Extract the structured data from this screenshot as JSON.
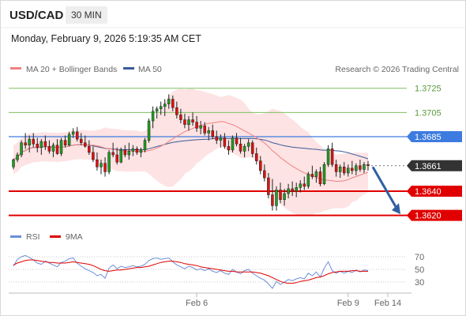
{
  "header": {
    "symbol": "USD/CAD",
    "timeframe": "30 MIN",
    "datetime": "Monday, February 9, 2026 5:19:35 AM CET"
  },
  "legend": {
    "ma20": "MA 20 + Bollinger Bands",
    "ma50": "MA 50",
    "credit": "Research © 2026 Trading Central",
    "rsi": "RSI",
    "rsi_ma": "9MA"
  },
  "colors": {
    "ma20": "#f08080",
    "ma50": "#3a5a9a",
    "bands_fill": "#fde3e3",
    "green_level": "#7fc060",
    "blue_level": "#3d7be0",
    "red_level": "#e00000",
    "price_box": "#333333",
    "candle_up": "#1f9e1f",
    "candle_down": "#e01010",
    "arrow": "#2f5fa3",
    "rsi_line": "#6a8fd8",
    "rsi_ma_line": "#e00000"
  },
  "chart_data": {
    "type": "candlestick",
    "ylim": [
      1.3608,
      1.3732
    ],
    "levels": [
      {
        "value": 1.3725,
        "label": "1.3725",
        "style": "green"
      },
      {
        "value": 1.3705,
        "label": "1.3705",
        "style": "green"
      },
      {
        "value": 1.3685,
        "label": "1.3685",
        "style": "blue"
      },
      {
        "value": 1.3661,
        "label": "1.3661",
        "style": "current"
      },
      {
        "value": 1.364,
        "label": "1.3640",
        "style": "red"
      },
      {
        "value": 1.362,
        "label": "1.3620",
        "style": "red"
      }
    ],
    "x_ticks": [
      "Feb 6",
      "Feb 9",
      "Feb 14"
    ],
    "candles": [
      [
        1.366,
        1.3667,
        1.3658,
        1.3666
      ],
      [
        1.3666,
        1.3672,
        1.3664,
        1.367
      ],
      [
        1.367,
        1.3682,
        1.3668,
        1.368
      ],
      [
        1.368,
        1.3688,
        1.3675,
        1.3678
      ],
      [
        1.3678,
        1.3686,
        1.3672,
        1.3683
      ],
      [
        1.3683,
        1.3688,
        1.3676,
        1.3679
      ],
      [
        1.3679,
        1.3684,
        1.3672,
        1.3676
      ],
      [
        1.3676,
        1.3683,
        1.367,
        1.3681
      ],
      [
        1.3681,
        1.3686,
        1.3674,
        1.3677
      ],
      [
        1.3677,
        1.3682,
        1.3671,
        1.3673
      ],
      [
        1.3673,
        1.368,
        1.3668,
        1.3678
      ],
      [
        1.3678,
        1.3683,
        1.367,
        1.3671
      ],
      [
        1.3671,
        1.3684,
        1.3669,
        1.3682
      ],
      [
        1.3682,
        1.3686,
        1.3676,
        1.3678
      ],
      [
        1.3678,
        1.3689,
        1.3677,
        1.3687
      ],
      [
        1.3687,
        1.3692,
        1.3684,
        1.3689
      ],
      [
        1.3689,
        1.3693,
        1.3681,
        1.3683
      ],
      [
        1.3683,
        1.3688,
        1.3678,
        1.368
      ],
      [
        1.368,
        1.3686,
        1.3676,
        1.3677
      ],
      [
        1.3677,
        1.3682,
        1.367,
        1.3672
      ],
      [
        1.3672,
        1.3677,
        1.3664,
        1.3666
      ],
      [
        1.3666,
        1.3672,
        1.3657,
        1.366
      ],
      [
        1.366,
        1.3666,
        1.3654,
        1.3663
      ],
      [
        1.3663,
        1.3668,
        1.3652,
        1.3656
      ],
      [
        1.3656,
        1.3674,
        1.3654,
        1.3672
      ],
      [
        1.3672,
        1.368,
        1.3668,
        1.367
      ],
      [
        1.367,
        1.3676,
        1.3662,
        1.3664
      ],
      [
        1.3664,
        1.3676,
        1.3663,
        1.3674
      ],
      [
        1.3674,
        1.3678,
        1.3668,
        1.367
      ],
      [
        1.367,
        1.368,
        1.3666,
        1.3673
      ],
      [
        1.3673,
        1.3678,
        1.3669,
        1.3675
      ],
      [
        1.3675,
        1.3677,
        1.367,
        1.3672
      ],
      [
        1.3672,
        1.3676,
        1.3668,
        1.3674
      ],
      [
        1.3674,
        1.3684,
        1.3672,
        1.3682
      ],
      [
        1.3682,
        1.37,
        1.368,
        1.3698
      ],
      [
        1.3698,
        1.371,
        1.3692,
        1.3706
      ],
      [
        1.3706,
        1.371,
        1.37,
        1.3708
      ],
      [
        1.3708,
        1.3714,
        1.3703,
        1.371
      ],
      [
        1.371,
        1.3716,
        1.3702,
        1.3712
      ],
      [
        1.3712,
        1.372,
        1.3708,
        1.3716
      ],
      [
        1.3716,
        1.3719,
        1.3706,
        1.3709
      ],
      [
        1.3709,
        1.3714,
        1.37,
        1.3703
      ],
      [
        1.3703,
        1.3708,
        1.3696,
        1.3699
      ],
      [
        1.3699,
        1.3704,
        1.3692,
        1.3695
      ],
      [
        1.3695,
        1.3702,
        1.369,
        1.3699
      ],
      [
        1.3699,
        1.3705,
        1.3694,
        1.3697
      ],
      [
        1.3697,
        1.3702,
        1.3689,
        1.3692
      ],
      [
        1.3692,
        1.3698,
        1.3687,
        1.3694
      ],
      [
        1.3694,
        1.3697,
        1.3686,
        1.3688
      ],
      [
        1.3688,
        1.3693,
        1.3682,
        1.369
      ],
      [
        1.369,
        1.3695,
        1.3683,
        1.3685
      ],
      [
        1.3685,
        1.369,
        1.3679,
        1.3682
      ],
      [
        1.3682,
        1.3687,
        1.3676,
        1.3684
      ],
      [
        1.3684,
        1.3688,
        1.3675,
        1.3677
      ],
      [
        1.3677,
        1.3682,
        1.367,
        1.3674
      ],
      [
        1.3674,
        1.3686,
        1.3672,
        1.3684
      ],
      [
        1.3684,
        1.3688,
        1.3677,
        1.3679
      ],
      [
        1.3679,
        1.3684,
        1.3671,
        1.3673
      ],
      [
        1.3673,
        1.3679,
        1.3668,
        1.3677
      ],
      [
        1.3677,
        1.3683,
        1.3673,
        1.368
      ],
      [
        1.368,
        1.3682,
        1.3668,
        1.3671
      ],
      [
        1.3671,
        1.3676,
        1.3662,
        1.3665
      ],
      [
        1.3665,
        1.3669,
        1.3654,
        1.3657
      ],
      [
        1.3657,
        1.3662,
        1.3648,
        1.3651
      ],
      [
        1.3651,
        1.3655,
        1.3634,
        1.3637
      ],
      [
        1.3637,
        1.365,
        1.3624,
        1.3628
      ],
      [
        1.3628,
        1.3644,
        1.3624,
        1.3641
      ],
      [
        1.3641,
        1.3647,
        1.363,
        1.3633
      ],
      [
        1.3633,
        1.3642,
        1.3628,
        1.3638
      ],
      [
        1.3638,
        1.3646,
        1.3634,
        1.3642
      ],
      [
        1.3642,
        1.3648,
        1.3636,
        1.364
      ],
      [
        1.364,
        1.3647,
        1.3635,
        1.3643
      ],
      [
        1.3643,
        1.3649,
        1.3639,
        1.3646
      ],
      [
        1.3646,
        1.3652,
        1.3641,
        1.3644
      ],
      [
        1.3644,
        1.3656,
        1.3642,
        1.3654
      ],
      [
        1.3654,
        1.3661,
        1.365,
        1.3652
      ],
      [
        1.3652,
        1.3658,
        1.3647,
        1.3656
      ],
      [
        1.3656,
        1.366,
        1.3644,
        1.3646
      ],
      [
        1.3646,
        1.3664,
        1.3645,
        1.3662
      ],
      [
        1.3662,
        1.3678,
        1.366,
        1.3675
      ],
      [
        1.3675,
        1.368,
        1.366,
        1.3662
      ],
      [
        1.3662,
        1.3666,
        1.3652,
        1.3656
      ],
      [
        1.3656,
        1.3662,
        1.3651,
        1.366
      ],
      [
        1.366,
        1.3664,
        1.3653,
        1.3655
      ],
      [
        1.3655,
        1.3662,
        1.3652,
        1.3659
      ],
      [
        1.3659,
        1.3665,
        1.3654,
        1.3657
      ],
      [
        1.3657,
        1.3663,
        1.3653,
        1.3661
      ],
      [
        1.3661,
        1.3666,
        1.3656,
        1.3658
      ],
      [
        1.3658,
        1.3664,
        1.3655,
        1.3662
      ],
      [
        1.3662,
        1.3665,
        1.3657,
        1.3661
      ]
    ],
    "rsi": [
      55,
      66,
      70,
      72,
      69,
      65,
      60,
      58,
      63,
      60,
      57,
      54,
      61,
      63,
      67,
      68,
      60,
      55,
      51,
      48,
      45,
      40,
      42,
      36,
      52,
      57,
      51,
      55,
      53,
      54,
      56,
      54,
      55,
      58,
      64,
      67,
      68,
      66,
      67,
      68,
      62,
      57,
      54,
      51,
      55,
      53,
      49,
      51,
      48,
      51,
      47,
      45,
      48,
      44,
      42,
      50,
      46,
      43,
      48,
      50,
      44,
      40,
      36,
      33,
      27,
      20,
      31,
      26,
      30,
      34,
      32,
      35,
      37,
      35,
      44,
      40,
      46,
      38,
      52,
      62,
      48,
      44,
      47,
      44,
      47,
      45,
      49,
      46,
      49,
      48
    ],
    "rsi_ma": [
      57,
      60,
      62,
      64,
      65,
      65,
      64,
      63,
      62,
      61,
      61,
      60,
      60,
      60,
      61,
      62,
      61,
      60,
      59,
      58,
      56,
      53,
      50,
      48,
      47,
      48,
      49,
      49,
      50,
      51,
      52,
      53,
      53,
      54,
      55,
      57,
      59,
      61,
      62,
      63,
      63,
      62,
      61,
      59,
      58,
      57,
      56,
      54,
      53,
      52,
      51,
      50,
      49,
      48,
      47,
      47,
      46,
      46,
      46,
      46,
      46,
      45,
      44,
      42,
      40,
      37,
      34,
      31,
      29,
      28,
      28,
      29,
      31,
      32,
      33,
      35,
      37,
      38,
      40,
      43,
      45,
      46,
      47,
      47,
      47,
      48,
      48,
      47,
      47,
      47
    ],
    "rsi_ticks": [
      70,
      50,
      30
    ],
    "rsi_ylim": [
      15,
      80
    ]
  }
}
